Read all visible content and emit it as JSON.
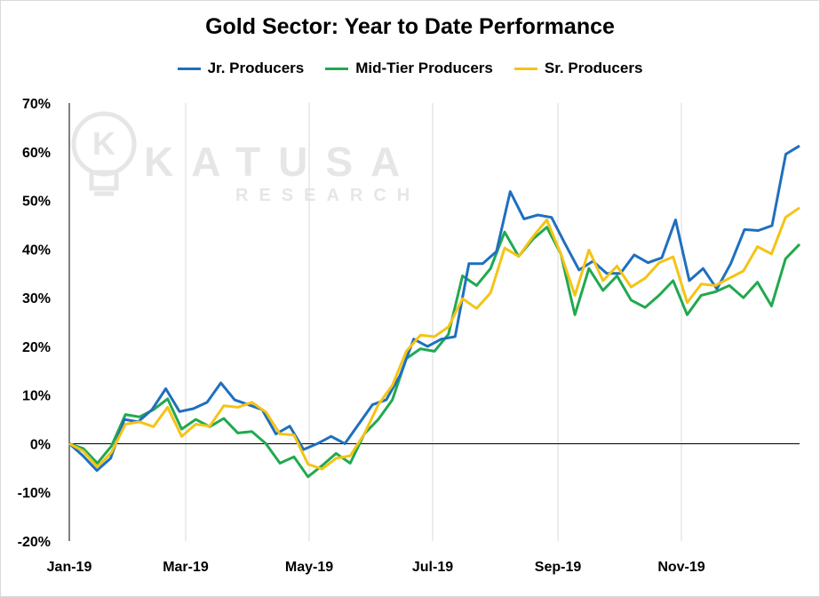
{
  "chart_data": {
    "type": "line",
    "title": "Gold Sector: Year to Date Performance",
    "xlabel": "",
    "ylabel": "",
    "ylim": [
      -20,
      70
    ],
    "y_ticks": [
      "70%",
      "60%",
      "50%",
      "40%",
      "30%",
      "20%",
      "10%",
      "0%",
      "-10%",
      "-20%"
    ],
    "x_ticks": [
      "Jan-19",
      "Mar-19",
      "May-19",
      "Jul-19",
      "Sep-19",
      "Nov-19"
    ],
    "x_start": "Jan-19",
    "x_end": "Dec-19",
    "grid": "vertical only",
    "legend_position": "top",
    "watermark": {
      "line1": "KATUSA",
      "line2": "RESEARCH",
      "icon": "lightbulb-k-logo"
    },
    "series": [
      {
        "name": "Jr. Producers",
        "color": "#1f6fbf",
        "values": [
          0,
          -2.5,
          -5.5,
          -3,
          5,
          4.5,
          7,
          11.3,
          6.6,
          7.2,
          8.5,
          12.5,
          9,
          8,
          7,
          2,
          3.6,
          -1.2,
          0,
          1.5,
          0,
          4,
          8,
          9,
          14,
          21.5,
          20,
          21.5,
          22,
          37,
          37,
          39.5,
          51.8,
          46.2,
          47,
          46.5,
          41,
          35.7,
          37.5,
          35,
          35,
          38.8,
          37.2,
          38.2,
          46,
          33.5,
          36,
          31.8,
          37,
          44,
          43.8,
          44.8,
          59.5,
          61.2
        ]
      },
      {
        "name": "Mid-Tier Producers",
        "color": "#21a94f",
        "values": [
          0,
          -1,
          -4,
          -0.5,
          6,
          5.5,
          7,
          9.2,
          3,
          5,
          3.5,
          5.2,
          2.2,
          2.5,
          0,
          -4,
          -2.7,
          -6.8,
          -4.5,
          -2,
          -4,
          2,
          5,
          9,
          17.5,
          19.5,
          19,
          22.5,
          34.5,
          32.5,
          36,
          43.5,
          38.5,
          42,
          44.5,
          39,
          26.5,
          36,
          31.5,
          34.5,
          29.5,
          28,
          30.5,
          33.5,
          26.5,
          30.5,
          31.2,
          32.5,
          30,
          33.2,
          28.3,
          38,
          41
        ]
      },
      {
        "name": "Sr. Producers",
        "color": "#f5c315",
        "values": [
          0,
          -1.5,
          -4.8,
          -1.8,
          4,
          4.5,
          3.5,
          7.5,
          1.5,
          4,
          3.6,
          7.8,
          7.5,
          8.5,
          6.5,
          2,
          1.8,
          -4.2,
          -5.2,
          -3,
          -2.5,
          2,
          8,
          12,
          19,
          22.3,
          22,
          24,
          29.8,
          27.8,
          31,
          40.2,
          38.5,
          42.5,
          46,
          39,
          30.5,
          39.8,
          33.5,
          36.5,
          32.2,
          34,
          37.2,
          38.4,
          29,
          32.8,
          32.5,
          34,
          35.5,
          40.5,
          39,
          46.5,
          48.5
        ]
      }
    ]
  }
}
